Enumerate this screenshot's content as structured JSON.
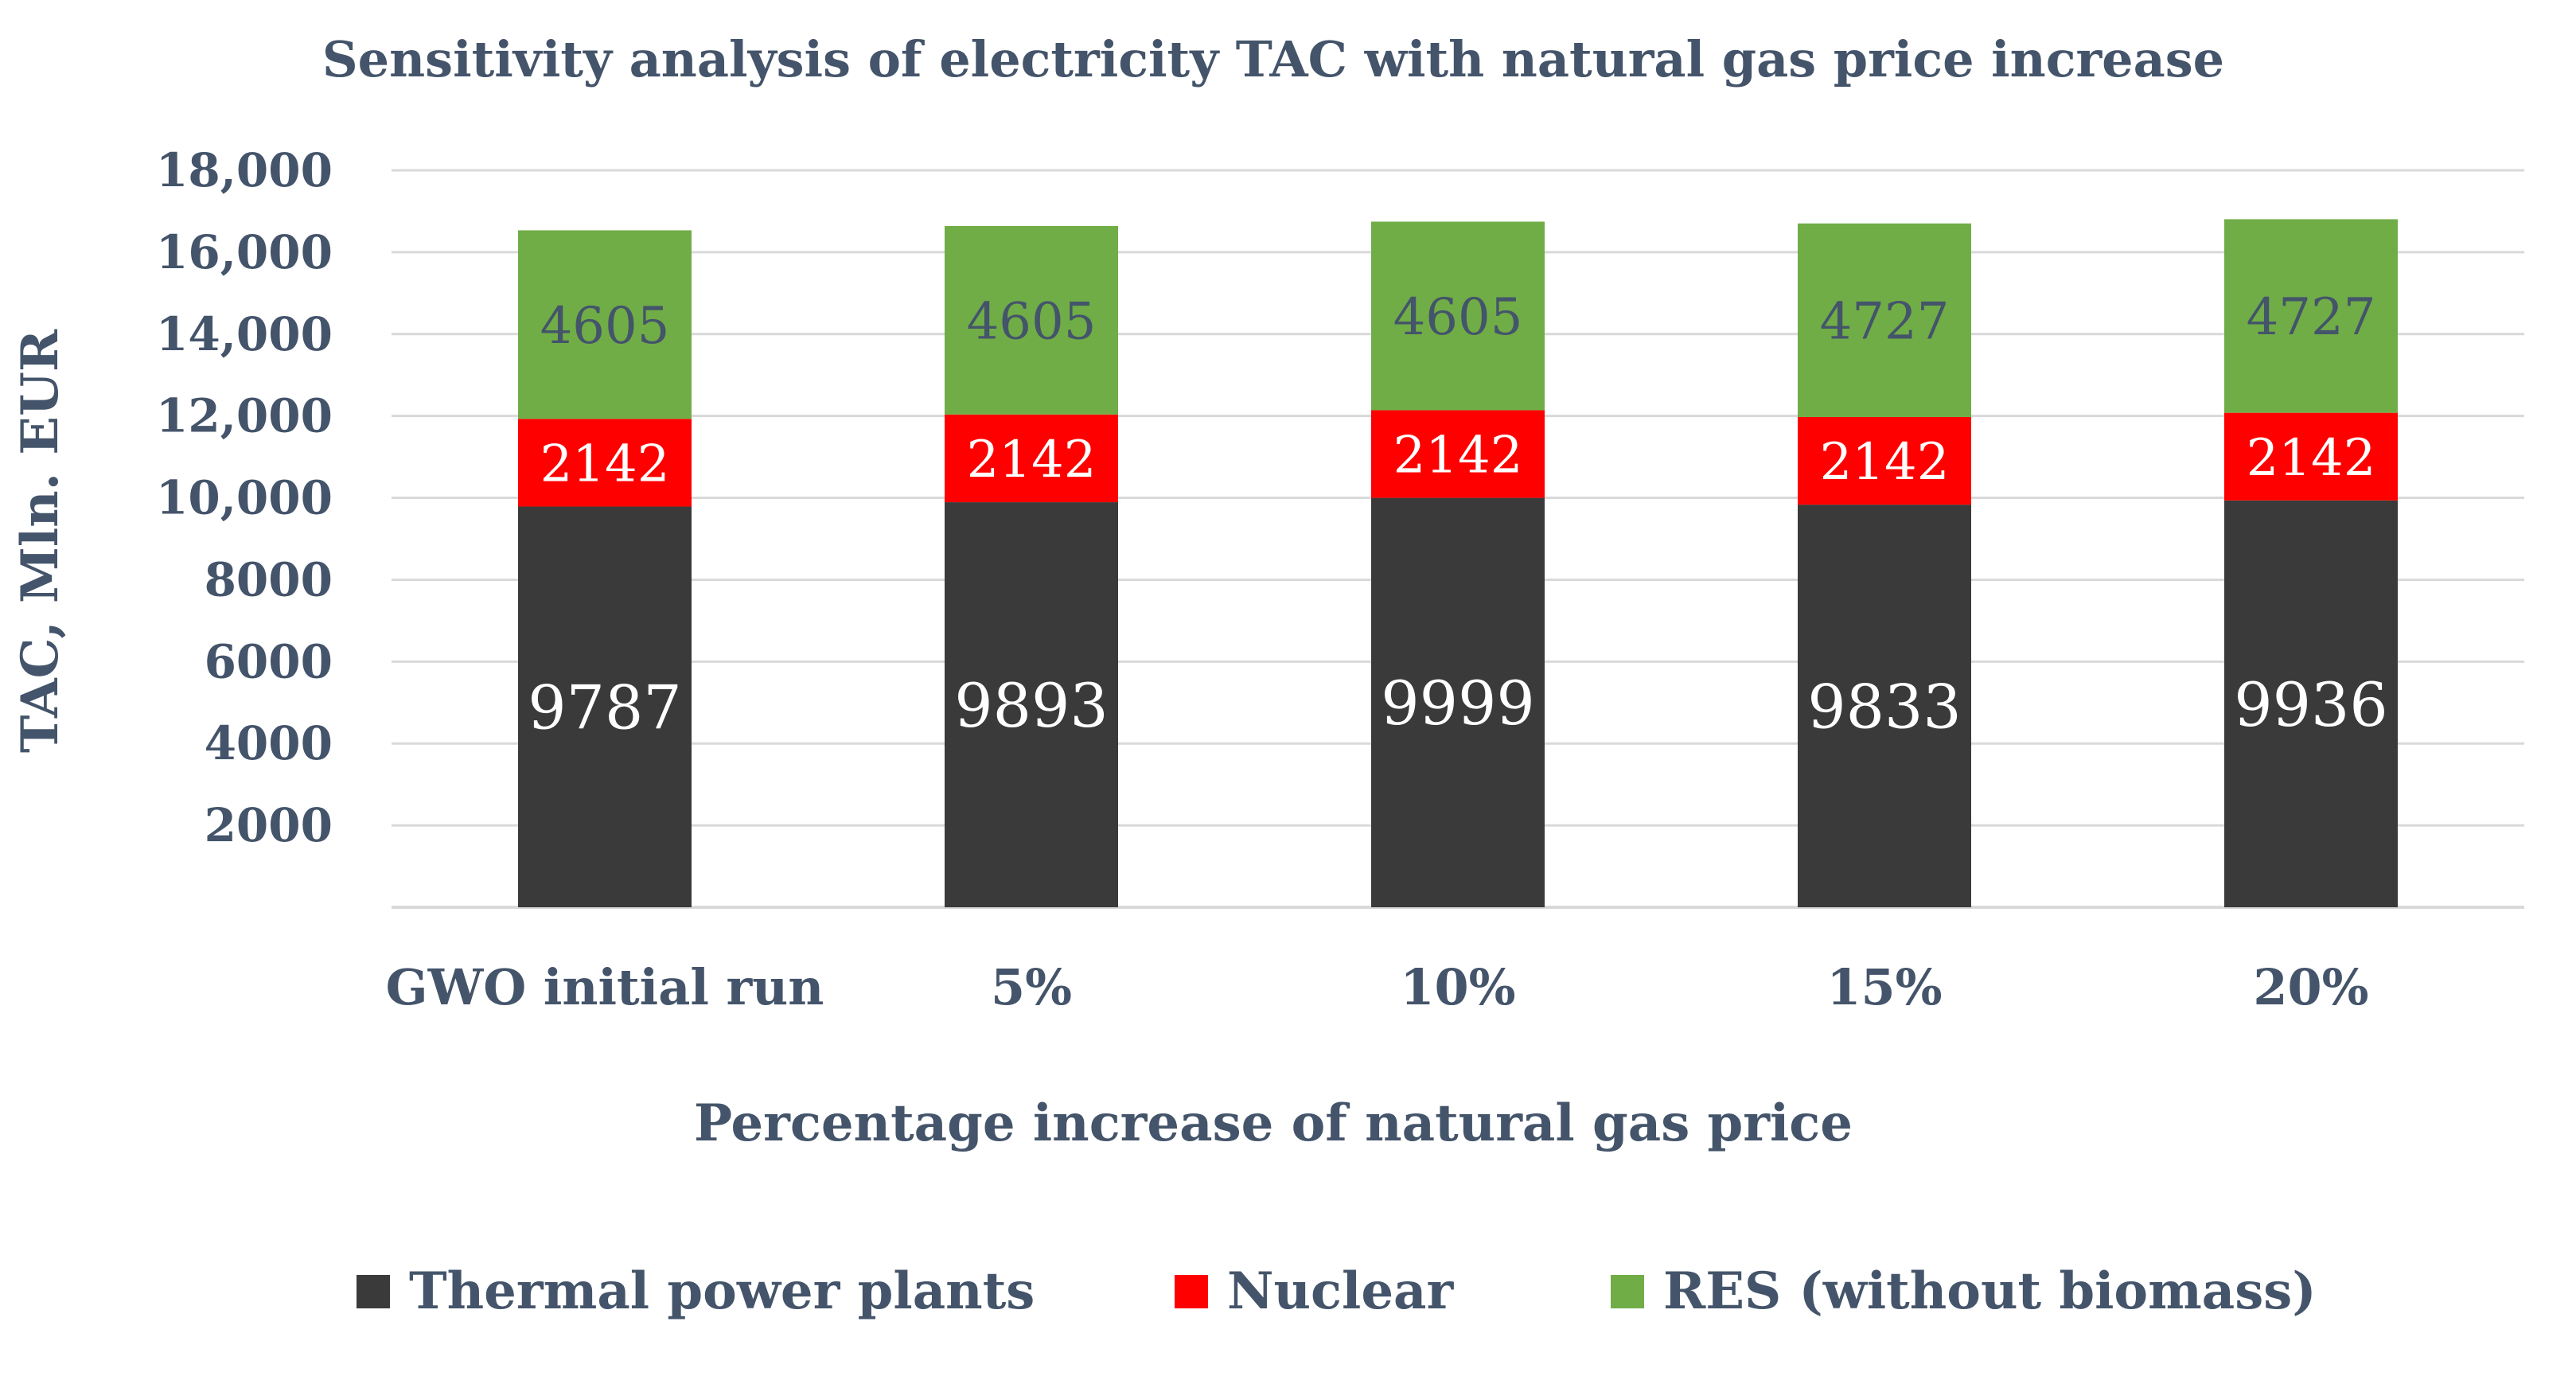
{
  "chart_data": {
    "type": "bar",
    "stacked": true,
    "title": "Sensitivity analysis of electricity TAC with natural gas price increase",
    "xlabel": "Percentage increase of natural gas price",
    "ylabel": "TAC, Mln. EUR",
    "categories": [
      "GWO initial run",
      "5%",
      "10%",
      "15%",
      "20%"
    ],
    "ylim": [
      0,
      18000
    ],
    "yticks": [
      2000,
      4000,
      6000,
      8000,
      10000,
      12000,
      14000,
      16000,
      18000
    ],
    "ytick_labels": [
      "2000",
      "4000",
      "6000",
      "8000",
      "10,000",
      "12,000",
      "14,000",
      "16,000",
      "18,000"
    ],
    "grid": true,
    "legend_position": "bottom",
    "series": [
      {
        "name": "Thermal power plants",
        "color": "#3a3a3a",
        "label_color": "#ffffff",
        "values": [
          9787,
          9893,
          9999,
          9833,
          9936
        ]
      },
      {
        "name": "Nuclear",
        "color": "#ff0000",
        "label_color": "#ffffff",
        "values": [
          2142,
          2142,
          2142,
          2142,
          2142
        ]
      },
      {
        "name": "RES (without biomass)",
        "color": "#70ad47",
        "label_color": "#44546a",
        "values": [
          4605,
          4605,
          4605,
          4727,
          4727
        ]
      }
    ]
  }
}
